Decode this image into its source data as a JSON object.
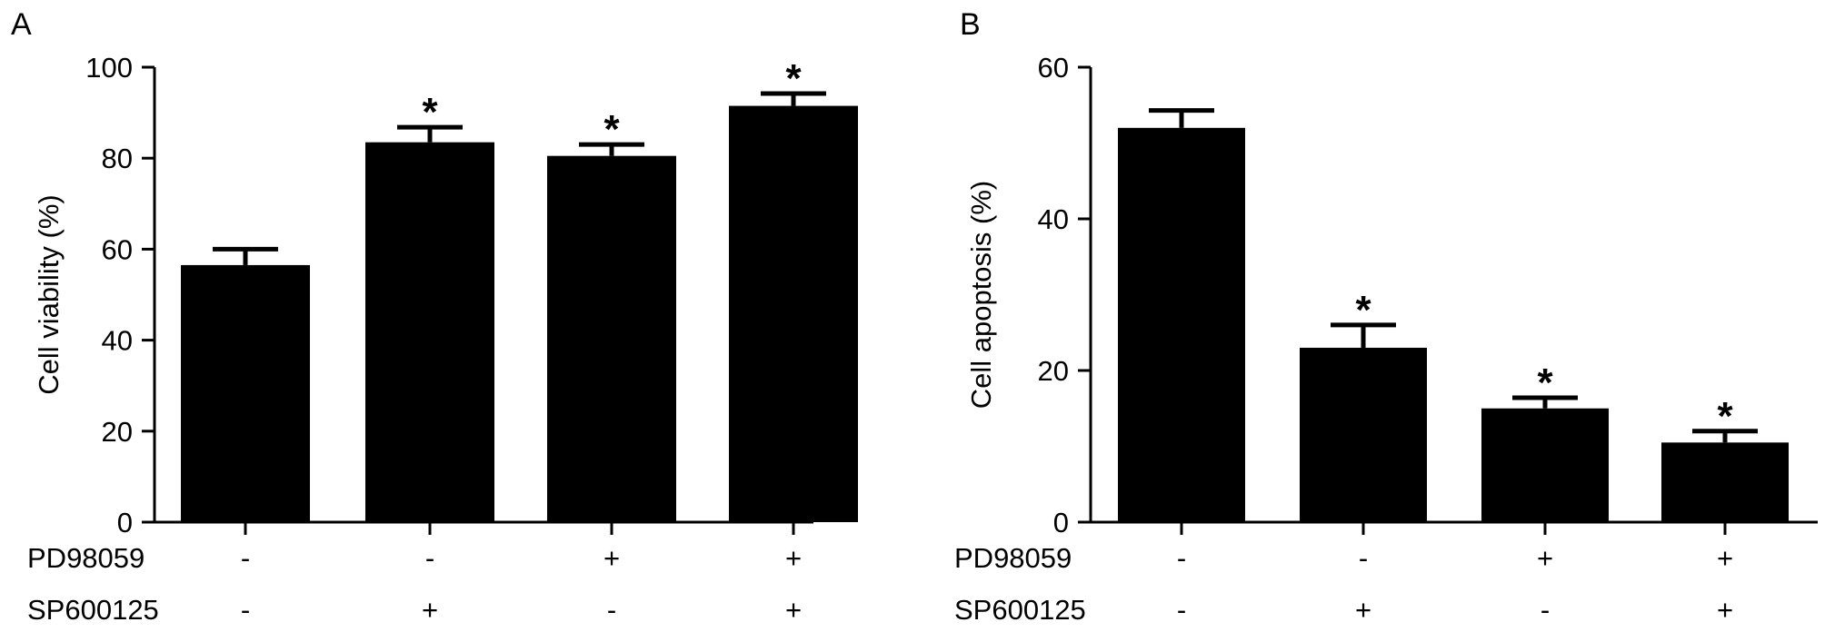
{
  "treatments": {
    "rows": [
      {
        "label": "PD98059",
        "signs": [
          "-",
          "-",
          "+",
          "+"
        ]
      },
      {
        "label": "SP600125",
        "signs": [
          "-",
          "+",
          "-",
          "+"
        ]
      }
    ]
  },
  "chart_data": [
    {
      "panel": "A",
      "type": "bar",
      "ylabel": "Cell viability (%)",
      "ylim": [
        0,
        100
      ],
      "yticks": [
        0,
        20,
        40,
        60,
        80,
        100
      ],
      "values": [
        56.5,
        83.5,
        80.5,
        91.5
      ],
      "errors": [
        3.5,
        3.3,
        2.5,
        2.7
      ],
      "significance": [
        "",
        "*",
        "*",
        "*"
      ],
      "bar_color": "#000000"
    },
    {
      "panel": "B",
      "type": "bar",
      "ylabel": "Cell apoptosis (%)",
      "ylim": [
        0,
        60
      ],
      "yticks": [
        0,
        20,
        40,
        60
      ],
      "values": [
        52.0,
        23.0,
        15.0,
        10.5
      ],
      "errors": [
        2.3,
        3.0,
        1.4,
        1.5
      ],
      "significance": [
        "",
        "*",
        "*",
        "*"
      ],
      "bar_color": "#000000"
    }
  ]
}
